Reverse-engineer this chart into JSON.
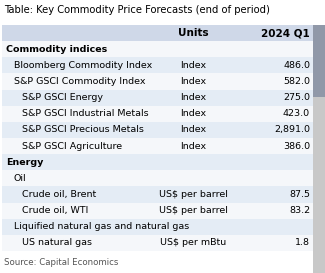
{
  "title": "Table: Key Commodity Price Forecasts (end of period)",
  "source": "Source: Capital Economics",
  "header": [
    "",
    "Units",
    "2024 Q1"
  ],
  "rows": [
    {
      "label": "Commodity indices",
      "units": "",
      "value": "",
      "level": 0,
      "bold": true,
      "bg": "white"
    },
    {
      "label": "Bloomberg Commodity Index",
      "units": "Index",
      "value": "486.0",
      "level": 1,
      "bold": false,
      "bg": "light"
    },
    {
      "label": "S&P GSCI Commodity Index",
      "units": "Index",
      "value": "582.0",
      "level": 1,
      "bold": false,
      "bg": "white"
    },
    {
      "label": "S&P GSCI Energy",
      "units": "Index",
      "value": "275.0",
      "level": 2,
      "bold": false,
      "bg": "light"
    },
    {
      "label": "S&P GSCI Industrial Metals",
      "units": "Index",
      "value": "423.0",
      "level": 2,
      "bold": false,
      "bg": "white"
    },
    {
      "label": "S&P GSCI Precious Metals",
      "units": "Index",
      "value": "2,891.0",
      "level": 2,
      "bold": false,
      "bg": "light"
    },
    {
      "label": "S&P GSCI Agriculture",
      "units": "Index",
      "value": "386.0",
      "level": 2,
      "bold": false,
      "bg": "white"
    },
    {
      "label": "Energy",
      "units": "",
      "value": "",
      "level": 0,
      "bold": true,
      "bg": "light"
    },
    {
      "label": "Oil",
      "units": "",
      "value": "",
      "level": 1,
      "bold": false,
      "bg": "white"
    },
    {
      "label": "Crude oil, Brent",
      "units": "US$ per barrel",
      "value": "87.5",
      "level": 2,
      "bold": false,
      "bg": "light"
    },
    {
      "label": "Crude oil, WTI",
      "units": "US$ per barrel",
      "value": "83.2",
      "level": 2,
      "bold": false,
      "bg": "white"
    },
    {
      "label": "Liquified natural gas and natural gas",
      "units": "",
      "value": "",
      "level": 1,
      "bold": false,
      "bg": "light"
    },
    {
      "label": "US natural gas",
      "units": "US$ per mBtu",
      "value": "1.8",
      "level": 2,
      "bold": false,
      "bg": "white"
    }
  ],
  "header_bg": "#cfd8e8",
  "light_bg": "#e4ecf5",
  "white_bg": "#f5f7fa",
  "scrollbar_bg": "#c8c8c8",
  "scrollbar_thumb": "#9098a8",
  "title_fontsize": 7.2,
  "header_fontsize": 7.5,
  "row_fontsize": 6.8,
  "source_fontsize": 6.2
}
